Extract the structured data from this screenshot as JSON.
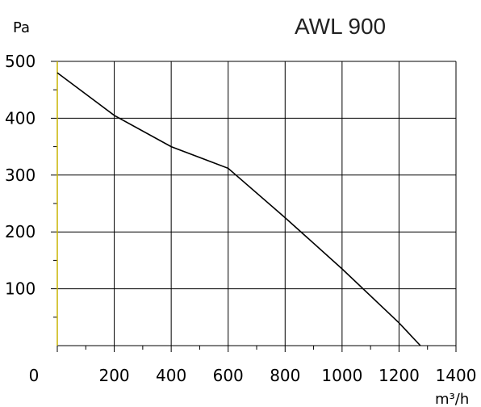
{
  "chart_data": {
    "type": "line",
    "title": "AWL 900",
    "xlabel": "m³/h",
    "ylabel": "Pa",
    "xlim": [
      0,
      1400
    ],
    "ylim": [
      0,
      500
    ],
    "x_ticks": [
      "0",
      "200",
      "400",
      "600",
      "800",
      "1000",
      "1200",
      "1400"
    ],
    "y_ticks": [
      "100",
      "200",
      "300",
      "400",
      "500"
    ],
    "grid": true,
    "series": [
      {
        "x": [
          0,
          200,
          400,
          600,
          800,
          1000,
          1200,
          1275
        ],
        "y": [
          480,
          405,
          350,
          312,
          225,
          135,
          40,
          0
        ]
      }
    ],
    "colors": {
      "curve": "#000000",
      "grid": "#000000",
      "y_axis": "#c8b400"
    }
  }
}
